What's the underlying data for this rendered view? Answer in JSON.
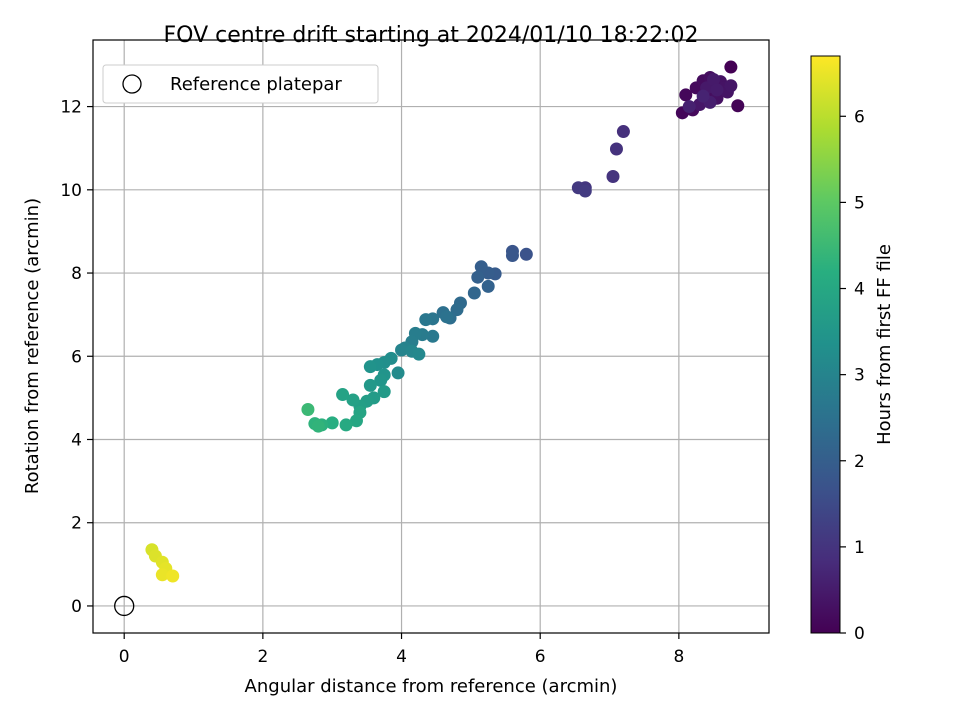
{
  "chart_data": {
    "type": "scatter",
    "title": "FOV centre drift starting at 2024/01/10 18:22:02",
    "xlabel": "Angular distance from reference (arcmin)",
    "ylabel": "Rotation from reference (arcmin)",
    "xlim": [
      -0.45,
      9.3
    ],
    "ylim": [
      -0.65,
      13.6
    ],
    "xticks": [
      0,
      2,
      4,
      6,
      8
    ],
    "yticks": [
      0,
      2,
      4,
      6,
      8,
      10,
      12
    ],
    "grid": true,
    "legend": {
      "position": "top-left",
      "entries": [
        "Reference platepar"
      ]
    },
    "reference_point": {
      "label": "Reference platepar",
      "x": 0,
      "y": 0
    },
    "colorbar": {
      "label": "Hours from first FF file",
      "colormap": "viridis",
      "range": [
        0,
        6.7
      ],
      "ticks": [
        0,
        1,
        2,
        3,
        4,
        5,
        6
      ]
    },
    "series": [
      {
        "points": [
          [
            8.75,
            12.95,
            0.0
          ],
          [
            8.85,
            12.02,
            0.05
          ],
          [
            8.05,
            11.85,
            0.1
          ],
          [
            8.1,
            12.28,
            0.12
          ],
          [
            8.2,
            11.92,
            0.15
          ],
          [
            8.25,
            12.45,
            0.18
          ],
          [
            8.35,
            12.62,
            0.2
          ],
          [
            8.4,
            12.3,
            0.22
          ],
          [
            8.45,
            12.7,
            0.25
          ],
          [
            8.5,
            12.5,
            0.28
          ],
          [
            8.55,
            12.2,
            0.3
          ],
          [
            8.6,
            12.6,
            0.32
          ],
          [
            8.65,
            12.45,
            0.35
          ],
          [
            8.7,
            12.35,
            0.37
          ],
          [
            8.75,
            12.5,
            0.4
          ],
          [
            8.3,
            12.05,
            0.42
          ],
          [
            8.4,
            12.45,
            0.45
          ],
          [
            8.5,
            12.65,
            0.48
          ],
          [
            8.55,
            12.4,
            0.5
          ],
          [
            8.45,
            12.1,
            0.55
          ],
          [
            8.15,
            12.0,
            0.6
          ],
          [
            8.35,
            12.25,
            0.65
          ],
          [
            7.2,
            11.4,
            0.9
          ],
          [
            7.1,
            10.98,
            0.95
          ],
          [
            7.05,
            10.32,
            1.0
          ],
          [
            6.65,
            10.05,
            1.05
          ],
          [
            6.55,
            10.05,
            1.1
          ],
          [
            6.65,
            9.97,
            1.15
          ],
          [
            5.8,
            8.45,
            1.7
          ],
          [
            5.6,
            8.52,
            1.75
          ],
          [
            5.6,
            8.42,
            1.8
          ],
          [
            5.35,
            7.98,
            1.9
          ],
          [
            5.25,
            8.0,
            1.95
          ],
          [
            5.15,
            8.15,
            2.0
          ],
          [
            5.1,
            7.9,
            2.05
          ],
          [
            5.25,
            7.68,
            2.1
          ],
          [
            5.05,
            7.52,
            2.2
          ],
          [
            4.85,
            7.28,
            2.3
          ],
          [
            4.8,
            7.12,
            2.35
          ],
          [
            4.7,
            6.92,
            2.4
          ],
          [
            4.6,
            7.05,
            2.45
          ],
          [
            4.65,
            6.95,
            2.5
          ],
          [
            4.45,
            6.9,
            2.6
          ],
          [
            4.35,
            6.88,
            2.65
          ],
          [
            4.45,
            6.48,
            2.7
          ],
          [
            4.3,
            6.52,
            2.75
          ],
          [
            4.2,
            6.55,
            2.8
          ],
          [
            4.15,
            6.35,
            2.85
          ],
          [
            4.05,
            6.2,
            2.95
          ],
          [
            4.0,
            6.15,
            3.0
          ],
          [
            4.15,
            6.12,
            3.05
          ],
          [
            4.25,
            6.05,
            3.1
          ],
          [
            3.95,
            5.6,
            3.2
          ],
          [
            3.85,
            5.95,
            3.25
          ],
          [
            3.75,
            5.85,
            3.3
          ],
          [
            3.65,
            5.8,
            3.35
          ],
          [
            3.55,
            5.75,
            3.4
          ],
          [
            3.75,
            5.55,
            3.45
          ],
          [
            3.7,
            5.42,
            3.5
          ],
          [
            3.55,
            5.3,
            3.55
          ],
          [
            3.75,
            5.15,
            3.6
          ],
          [
            3.6,
            5.0,
            3.65
          ],
          [
            3.5,
            4.92,
            3.7
          ],
          [
            3.4,
            4.8,
            3.75
          ],
          [
            3.3,
            4.95,
            3.8
          ],
          [
            3.15,
            5.08,
            3.85
          ],
          [
            3.4,
            4.65,
            3.9
          ],
          [
            3.35,
            4.45,
            3.95
          ],
          [
            3.2,
            4.35,
            4.05
          ],
          [
            3.0,
            4.4,
            4.15
          ],
          [
            2.85,
            4.35,
            4.25
          ],
          [
            2.75,
            4.38,
            4.3
          ],
          [
            2.8,
            4.32,
            4.35
          ],
          [
            2.65,
            4.72,
            4.5
          ],
          [
            0.4,
            1.35,
            6.3
          ],
          [
            0.45,
            1.2,
            6.35
          ],
          [
            0.55,
            1.05,
            6.4
          ],
          [
            0.6,
            0.9,
            6.45
          ],
          [
            0.55,
            0.75,
            6.5
          ],
          [
            0.7,
            0.72,
            6.55
          ]
        ]
      }
    ]
  }
}
